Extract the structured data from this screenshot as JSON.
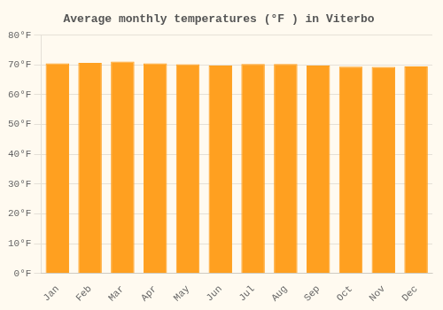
{
  "chart_data": {
    "type": "bar",
    "title": "Average monthly temperatures (°F ) in Viterbo",
    "categories": [
      "Jan",
      "Feb",
      "Mar",
      "Apr",
      "May",
      "Jun",
      "Jul",
      "Aug",
      "Sep",
      "Oct",
      "Nov",
      "Dec"
    ],
    "values": [
      70.5,
      70.7,
      71.1,
      70.5,
      70.2,
      69.8,
      70.3,
      70.3,
      69.8,
      69.4,
      69.3,
      69.5
    ],
    "color": "#FFA020",
    "ylim": [
      0,
      80
    ],
    "yticks": [
      {
        "value": 0,
        "label": "0°F"
      },
      {
        "value": 10,
        "label": "10°F"
      },
      {
        "value": 20,
        "label": "20°F"
      },
      {
        "value": 30,
        "label": "30°F"
      },
      {
        "value": 40,
        "label": "40°F"
      },
      {
        "value": 50,
        "label": "50°F"
      },
      {
        "value": 60,
        "label": "60°F"
      },
      {
        "value": 70,
        "label": "70°F"
      },
      {
        "value": 80,
        "label": "80°F"
      }
    ],
    "grid": true
  }
}
